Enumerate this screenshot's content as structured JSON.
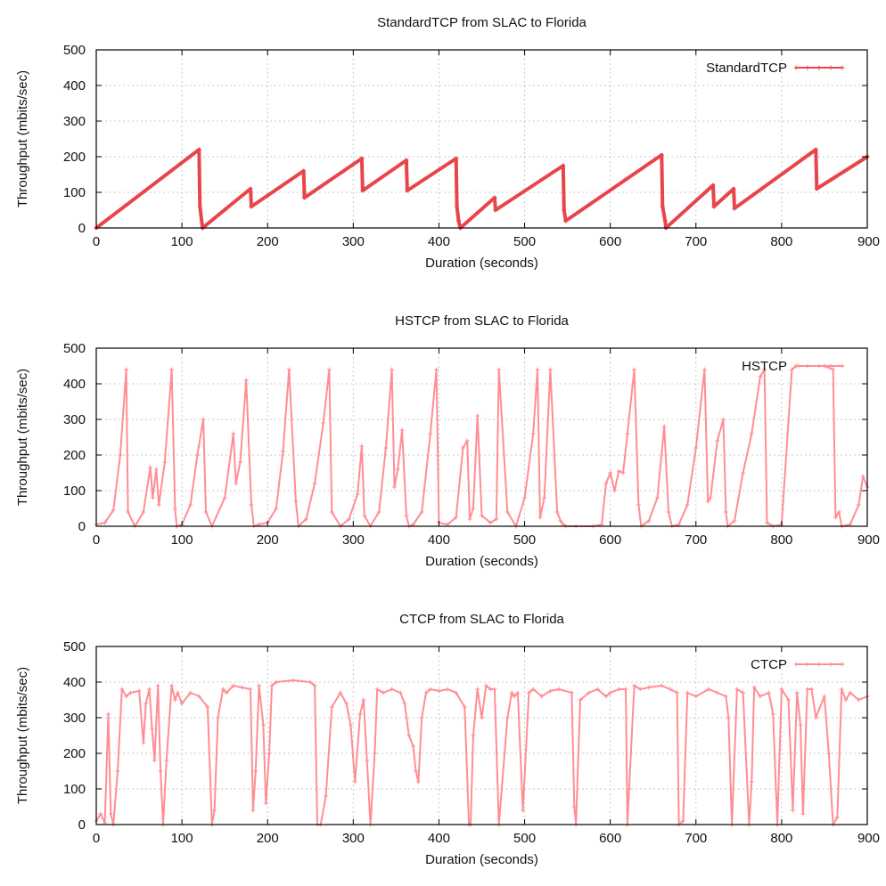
{
  "chart_data": [
    {
      "type": "line",
      "title": "StandardTCP from SLAC to Florida",
      "xlabel": "Duration (seconds)",
      "ylabel": "Throughput (mbits/sec)",
      "xlim": [
        0,
        900
      ],
      "ylim": [
        0,
        500
      ],
      "xticks": [
        "0",
        "100",
        "200",
        "300",
        "400",
        "500",
        "600",
        "700",
        "800",
        "900"
      ],
      "yticks": [
        "0",
        "100",
        "200",
        "300",
        "400",
        "500"
      ],
      "grid": true,
      "legend_position": "top-right",
      "color": "#e8444a",
      "series": [
        {
          "name": "StandardTCP",
          "x": [
            0,
            120,
            121,
            124,
            180,
            181,
            242,
            243,
            310,
            311,
            362,
            363,
            420,
            421,
            423,
            425,
            465,
            466,
            545,
            546,
            548,
            660,
            661,
            664,
            665,
            720,
            721,
            744,
            745,
            840,
            841,
            900
          ],
          "y": [
            0,
            220,
            60,
            0,
            110,
            60,
            160,
            85,
            195,
            105,
            190,
            105,
            195,
            60,
            20,
            0,
            85,
            50,
            175,
            50,
            20,
            205,
            60,
            20,
            0,
            120,
            60,
            110,
            55,
            220,
            110,
            200
          ]
        }
      ]
    },
    {
      "type": "line",
      "title": "HSTCP from SLAC to Florida",
      "xlabel": "Duration (seconds)",
      "ylabel": "Throughput (mbits/sec)",
      "xlim": [
        0,
        900
      ],
      "ylim": [
        0,
        500
      ],
      "xticks": [
        "0",
        "100",
        "200",
        "300",
        "400",
        "500",
        "600",
        "700",
        "800",
        "900"
      ],
      "yticks": [
        "0",
        "100",
        "200",
        "300",
        "400",
        "500"
      ],
      "grid": true,
      "legend_position": "top-right",
      "color": "#ff8e94",
      "series": [
        {
          "name": "HSTCP",
          "x": [
            0,
            10,
            20,
            28,
            35,
            37,
            45,
            55,
            63,
            66,
            70,
            73,
            80,
            88,
            92,
            94,
            100,
            110,
            118,
            125,
            128,
            135,
            150,
            160,
            163,
            168,
            175,
            181,
            184,
            190,
            200,
            210,
            218,
            225,
            233,
            236,
            245,
            255,
            265,
            272,
            275,
            285,
            295,
            305,
            310,
            313,
            320,
            330,
            338,
            345,
            348,
            352,
            357,
            362,
            365,
            370,
            380,
            390,
            397,
            400,
            410,
            420,
            428,
            433,
            436,
            440,
            445,
            450,
            460,
            467,
            470,
            480,
            490,
            500,
            510,
            515,
            518,
            523,
            530,
            538,
            542,
            545,
            548,
            560,
            580,
            590,
            595,
            600,
            605,
            610,
            615,
            620,
            628,
            633,
            636,
            645,
            655,
            663,
            668,
            672,
            680,
            690,
            700,
            710,
            714,
            717,
            725,
            732,
            735,
            737,
            745,
            755,
            765,
            775,
            780,
            783,
            790,
            800,
            812,
            817,
            820,
            850,
            860,
            863,
            867,
            870,
            880,
            890,
            895,
            900
          ],
          "y": [
            5,
            10,
            45,
            200,
            440,
            40,
            0,
            40,
            165,
            80,
            160,
            60,
            180,
            440,
            50,
            0,
            5,
            60,
            200,
            300,
            40,
            0,
            80,
            260,
            120,
            180,
            410,
            60,
            0,
            5,
            10,
            50,
            210,
            440,
            70,
            0,
            20,
            120,
            290,
            440,
            40,
            0,
            20,
            90,
            225,
            30,
            0,
            40,
            220,
            440,
            110,
            160,
            270,
            30,
            0,
            5,
            40,
            260,
            440,
            10,
            5,
            25,
            220,
            240,
            20,
            50,
            310,
            30,
            10,
            20,
            440,
            40,
            0,
            80,
            260,
            440,
            25,
            80,
            440,
            40,
            15,
            5,
            0,
            0,
            0,
            5,
            120,
            150,
            100,
            155,
            150,
            260,
            440,
            60,
            0,
            15,
            80,
            280,
            40,
            0,
            5,
            60,
            220,
            440,
            70,
            80,
            240,
            300,
            40,
            0,
            15,
            150,
            260,
            420,
            440,
            10,
            0,
            5,
            440,
            450,
            450,
            450,
            440,
            25,
            40,
            0,
            5,
            60,
            140,
            110
          ]
        }
      ]
    },
    {
      "type": "line",
      "title": "CTCP from SLAC to Florida",
      "xlabel": "Duration (seconds)",
      "ylabel": "Throughput (mbits/sec)",
      "xlim": [
        0,
        900
      ],
      "ylim": [
        0,
        500
      ],
      "xticks": [
        "0",
        "100",
        "200",
        "300",
        "400",
        "500",
        "600",
        "700",
        "800",
        "900"
      ],
      "yticks": [
        "0",
        "100",
        "200",
        "300",
        "400",
        "500"
      ],
      "grid": true,
      "legend_position": "top-right",
      "color": "#ff8e94",
      "series": [
        {
          "name": "CTCP",
          "x": [
            0,
            5,
            10,
            14,
            17,
            20,
            25,
            30,
            35,
            40,
            50,
            55,
            58,
            62,
            65,
            68,
            72,
            75,
            78,
            82,
            88,
            92,
            95,
            100,
            110,
            120,
            130,
            135,
            138,
            142,
            148,
            152,
            160,
            170,
            180,
            183,
            186,
            190,
            195,
            198,
            202,
            205,
            210,
            230,
            250,
            255,
            258,
            262,
            268,
            275,
            285,
            292,
            297,
            302,
            308,
            312,
            316,
            320,
            325,
            328,
            335,
            345,
            355,
            360,
            365,
            370,
            373,
            376,
            380,
            385,
            390,
            400,
            410,
            420,
            430,
            435,
            437,
            440,
            445,
            450,
            455,
            460,
            465,
            470,
            480,
            485,
            488,
            492,
            498,
            505,
            510,
            520,
            530,
            540,
            555,
            558,
            560,
            565,
            575,
            585,
            595,
            600,
            610,
            618,
            620,
            622,
            628,
            635,
            645,
            660,
            670,
            678,
            680,
            685,
            690,
            700,
            715,
            725,
            735,
            738,
            742,
            748,
            755,
            762,
            765,
            768,
            775,
            785,
            790,
            795,
            800,
            808,
            813,
            818,
            822,
            825,
            830,
            835,
            840,
            850,
            855,
            860,
            865,
            870,
            875,
            880,
            890,
            900
          ],
          "y": [
            10,
            30,
            5,
            310,
            30,
            0,
            150,
            380,
            360,
            370,
            375,
            230,
            340,
            380,
            270,
            180,
            390,
            150,
            0,
            180,
            390,
            350,
            370,
            340,
            370,
            360,
            330,
            0,
            40,
            300,
            380,
            370,
            390,
            385,
            380,
            40,
            150,
            390,
            280,
            60,
            200,
            390,
            400,
            405,
            400,
            390,
            0,
            0,
            80,
            330,
            370,
            340,
            280,
            120,
            310,
            350,
            180,
            0,
            200,
            380,
            370,
            380,
            370,
            340,
            250,
            220,
            150,
            120,
            300,
            370,
            380,
            375,
            380,
            370,
            330,
            0,
            0,
            250,
            380,
            300,
            390,
            380,
            380,
            0,
            300,
            370,
            360,
            370,
            40,
            370,
            380,
            360,
            375,
            380,
            370,
            50,
            0,
            350,
            370,
            380,
            360,
            370,
            380,
            380,
            0,
            100,
            390,
            380,
            385,
            390,
            380,
            370,
            0,
            10,
            370,
            360,
            380,
            370,
            360,
            300,
            0,
            380,
            370,
            0,
            120,
            385,
            360,
            370,
            310,
            0,
            380,
            350,
            40,
            370,
            280,
            30,
            380,
            380,
            300,
            360,
            200,
            0,
            20,
            380,
            350,
            370,
            350,
            360
          ]
        }
      ]
    }
  ]
}
